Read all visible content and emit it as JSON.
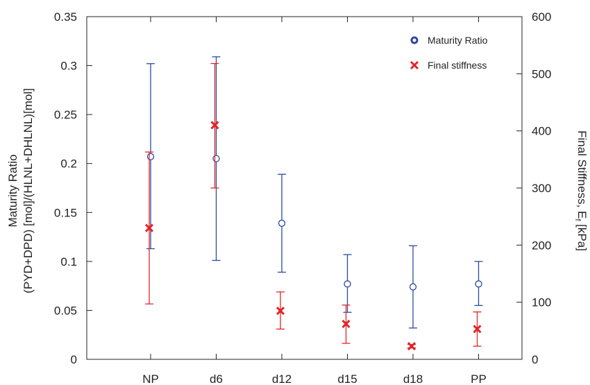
{
  "colors": {
    "maturity": "#2b4aa0",
    "stiffness": "#e0262a",
    "axis": "#222222"
  },
  "chart_data": {
    "type": "scatter",
    "categories": [
      "NP",
      "d6",
      "d12",
      "d15",
      "d18",
      "PP"
    ],
    "left_axis": {
      "label_line1": "Maturity Ratio",
      "label_line2": "(PYD+DPD) [mol]/(HLNL+DHLNL)[mol]",
      "ylim": [
        0,
        0.35
      ],
      "ticks": [
        0,
        0.05,
        0.1,
        0.15,
        0.2,
        0.25,
        0.3,
        0.35
      ],
      "tick_labels": [
        "0",
        "0.05",
        "0.1",
        "0.15",
        "0.2",
        "0.25",
        "0.3",
        "0.35"
      ]
    },
    "right_axis": {
      "label_main": "Final Stiffness, E",
      "label_sub": "f",
      "label_unit": " [kPa]",
      "ylim": [
        0,
        600
      ],
      "ticks": [
        0,
        100,
        200,
        300,
        400,
        500,
        600
      ],
      "tick_labels": [
        "0",
        "100",
        "200",
        "300",
        "400",
        "500",
        "600"
      ]
    },
    "series": [
      {
        "name": "Maturity Ratio",
        "axis": "left",
        "marker": "circle",
        "values": [
          0.207,
          0.205,
          0.139,
          0.077,
          0.074,
          0.077
        ],
        "err_low": [
          0.113,
          0.101,
          0.089,
          0.048,
          0.032,
          0.055
        ],
        "err_high": [
          0.302,
          0.309,
          0.189,
          0.107,
          0.116,
          0.1
        ]
      },
      {
        "name": "Final stiffness",
        "axis": "right",
        "marker": "x",
        "values": [
          230,
          410,
          85,
          62,
          23,
          53
        ],
        "err_low": [
          97,
          300,
          53,
          28,
          20,
          23
        ],
        "err_high": [
          363,
          518,
          118,
          95,
          26,
          83
        ]
      }
    ],
    "legend_position": "top-right",
    "grid": false
  }
}
